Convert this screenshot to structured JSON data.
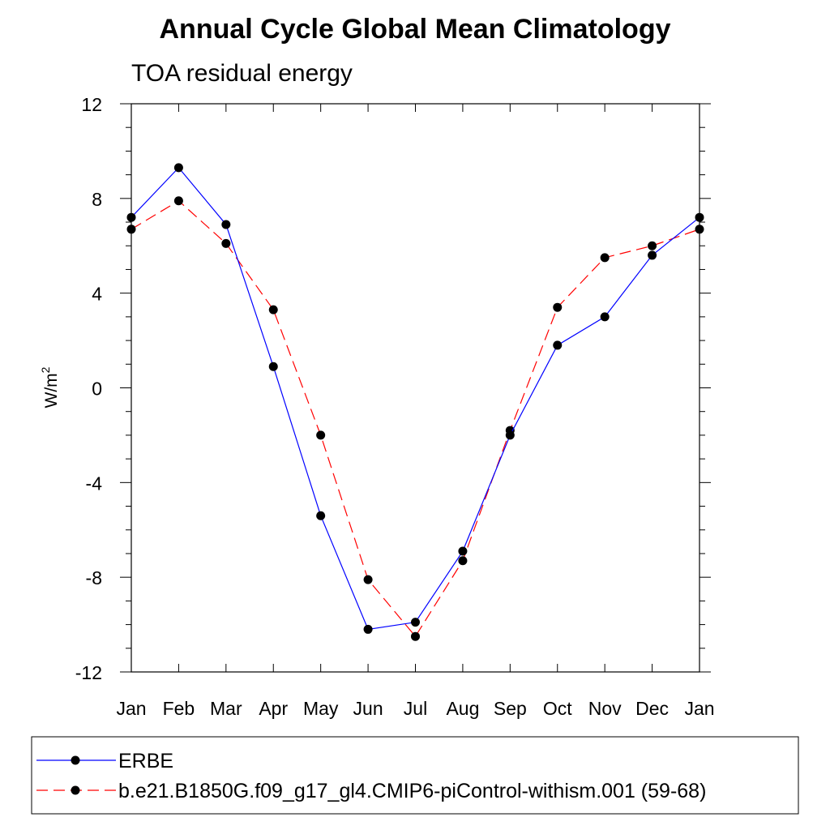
{
  "chart_data": {
    "type": "line",
    "title": "Annual Cycle Global Mean Climatology",
    "subtitle": "TOA residual energy",
    "ylabel_base": "W/m",
    "ylabel_sup": "2",
    "xlabel": "",
    "categories": [
      "Jan",
      "Feb",
      "Mar",
      "Apr",
      "May",
      "Jun",
      "Jul",
      "Aug",
      "Sep",
      "Oct",
      "Nov",
      "Dec",
      "Jan"
    ],
    "ylim": [
      -12,
      12
    ],
    "yticks": [
      "12",
      "8",
      "4",
      "0",
      "-4",
      "-8",
      "-12"
    ],
    "ytick_values": [
      12,
      8,
      4,
      0,
      -4,
      -8,
      -12
    ],
    "grid": false,
    "legend_position": "bottom",
    "series": [
      {
        "name": "ERBE",
        "color": "#0000ff",
        "style": "solid",
        "marker": "filled-circle",
        "values": [
          7.2,
          9.3,
          6.9,
          0.9,
          -5.4,
          -10.2,
          -9.9,
          -6.9,
          -2.0,
          1.8,
          3.0,
          5.6,
          7.2
        ]
      },
      {
        "name": "b.e21.B1850G.f09_g17_gl4.CMIP6-piControl-withism.001 (59-68)",
        "color": "#ff0000",
        "style": "dashed",
        "marker": "filled-circle",
        "values": [
          6.7,
          7.9,
          6.1,
          3.3,
          -2.0,
          -8.1,
          -10.5,
          -7.3,
          -1.8,
          3.4,
          5.5,
          6.0,
          6.7
        ]
      }
    ]
  }
}
